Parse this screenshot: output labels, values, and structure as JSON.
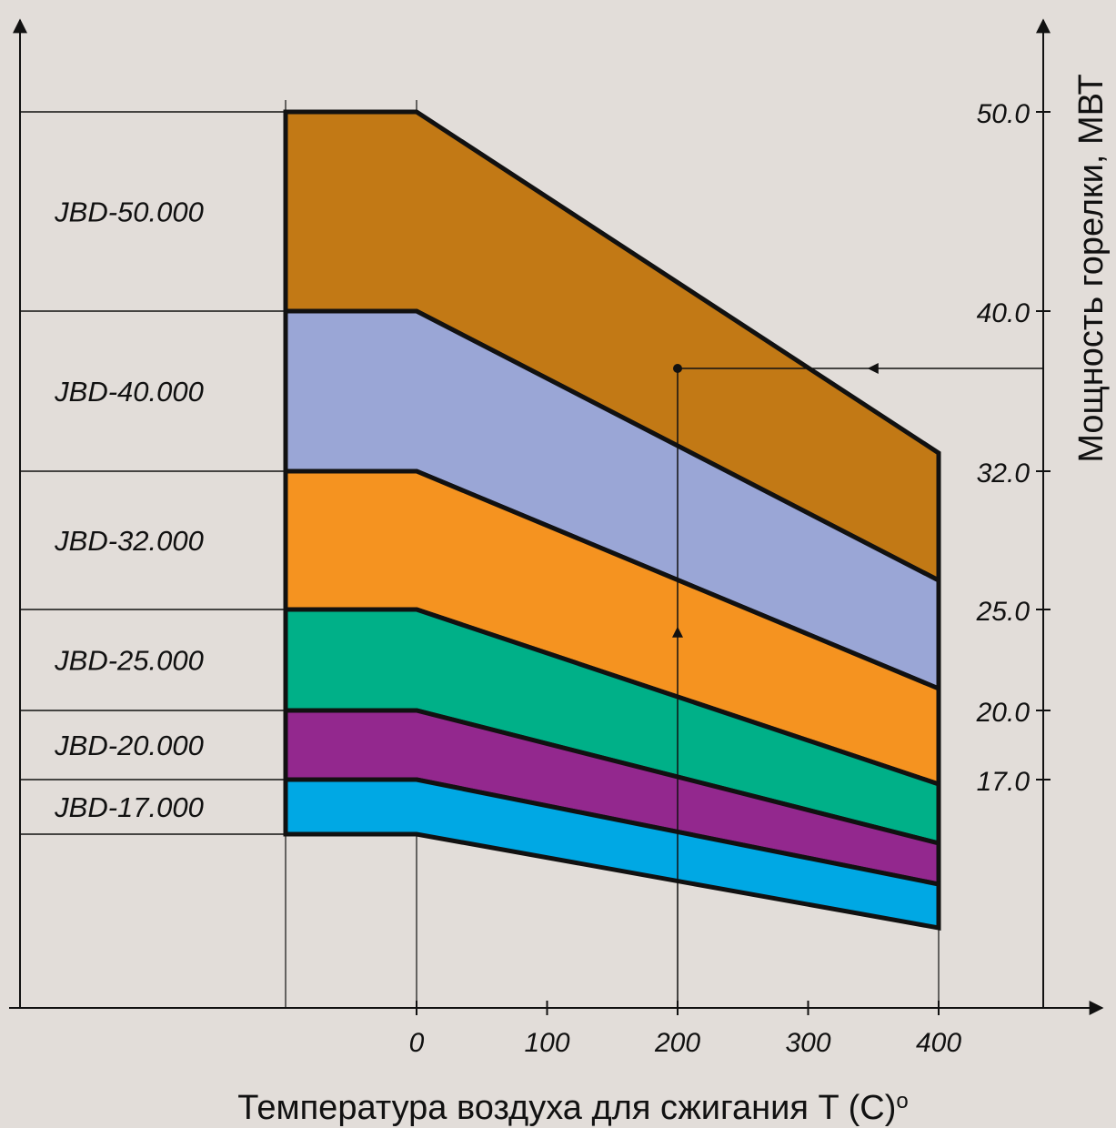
{
  "chart_data": {
    "type": "area",
    "xlabel": "Температура воздуха для сжигания T (C)",
    "xlabel_suffix": "o",
    "ylabel": "Мощность горелки, МВТ",
    "x_ticks": [
      "0",
      "100",
      "200",
      "300",
      "400"
    ],
    "y_ticks": [
      "50.0",
      "40.0",
      "32.0",
      "25.0",
      "20.0",
      "17.0"
    ],
    "y_scale": "nonlinear (tick labels only)",
    "grid": false,
    "x": [
      0,
      400
    ],
    "series": [
      {
        "name": "JBD-50.000",
        "color": "#c27915",
        "top": [
          50.0,
          32.0
        ],
        "bottom": [
          40.0,
          25.0
        ]
      },
      {
        "name": "JBD-40.000",
        "color": "#9aa6d6",
        "top": [
          40.0,
          25.0
        ],
        "bottom": [
          32.0,
          20.0
        ]
      },
      {
        "name": "JBD-32.000",
        "color": "#f59320",
        "top": [
          32.0,
          20.0
        ],
        "bottom": [
          25.0,
          17.0
        ]
      },
      {
        "name": "JBD-25.000",
        "color": "#00b088",
        "top": [
          25.0,
          17.0
        ],
        "bottom": [
          20.0,
          15.5
        ]
      },
      {
        "name": "JBD-20.000",
        "color": "#93288e",
        "top": [
          20.0,
          15.5
        ],
        "bottom": [
          17.0,
          13.8
        ]
      },
      {
        "name": "JBD-17.000",
        "color": "#00a8e4",
        "top": [
          17.0,
          13.8
        ],
        "bottom": [
          14.8,
          12.5
        ]
      }
    ],
    "annotation": {
      "type": "reading-guide",
      "x": 200,
      "y": 37.0
    }
  }
}
